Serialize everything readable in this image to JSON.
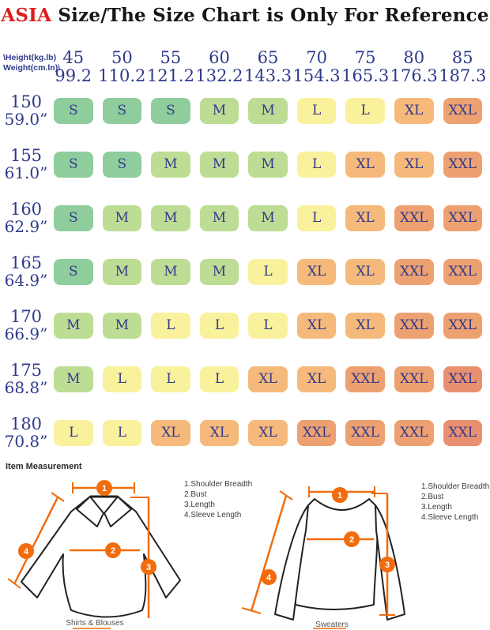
{
  "title": {
    "brand": "ASIA",
    "rest": " Size/The Size Chart is Only For Reference"
  },
  "colors": {
    "brand_red": "#e01b1d",
    "navy": "#2e3a8c",
    "cell_text": "#333a8c",
    "accent_orange": "#f26c0d"
  },
  "table": {
    "corner_label_line1": "\\Height(kg.lb)",
    "corner_label_line2": "Weight(cm.ln)\\",
    "size_colors": {
      "S": "#8fcd9d",
      "M": "#bddd95",
      "L": "#faf19c",
      "XL": "#f5ba7b",
      "XXL": "#eda171",
      "XXL_deep": "#e8906f"
    },
    "deep_cells": [
      [
        5,
        8
      ],
      [
        6,
        8
      ]
    ]
  },
  "chart_data": {
    "type": "table",
    "title": "ASIA Size/The Size Chart is Only For Reference",
    "x_header": {
      "label": "Weight",
      "kg": [
        45,
        50,
        55,
        60,
        65,
        70,
        75,
        80,
        85
      ],
      "lb": [
        99.2,
        110.2,
        121.2,
        132.2,
        143.3,
        154.3,
        165.3,
        176.3,
        187.3
      ]
    },
    "y_header": {
      "label": "Height",
      "cm": [
        150,
        155,
        160,
        165,
        170,
        175,
        180
      ],
      "inch": [
        59.0,
        61.0,
        62.9,
        64.9,
        66.9,
        68.8,
        70.8
      ]
    },
    "cells": [
      [
        "S",
        "S",
        "S",
        "M",
        "M",
        "L",
        "L",
        "XL",
        "XXL"
      ],
      [
        "S",
        "S",
        "M",
        "M",
        "M",
        "L",
        "XL",
        "XL",
        "XXL"
      ],
      [
        "S",
        "M",
        "M",
        "M",
        "M",
        "L",
        "XL",
        "XXL",
        "XXL"
      ],
      [
        "S",
        "M",
        "M",
        "M",
        "L",
        "XL",
        "XL",
        "XXL",
        "XXL"
      ],
      [
        "M",
        "M",
        "L",
        "L",
        "L",
        "XL",
        "XL",
        "XXL",
        "XXL"
      ],
      [
        "M",
        "L",
        "L",
        "L",
        "XL",
        "XL",
        "XXL",
        "XXL",
        "XXL"
      ],
      [
        "L",
        "L",
        "XL",
        "XL",
        "XL",
        "XXL",
        "XXL",
        "XXL",
        "XXL"
      ]
    ]
  },
  "measurement": {
    "heading": "Item Measurement",
    "legend": [
      "1.Shoulder Breadth",
      "2.Bust",
      "3.Length",
      "4.Sleeve Length"
    ],
    "markers": [
      "1",
      "2",
      "3",
      "4"
    ],
    "panels": [
      {
        "caption": "Shirts & Blouses"
      },
      {
        "caption": "Sweaters"
      }
    ]
  }
}
